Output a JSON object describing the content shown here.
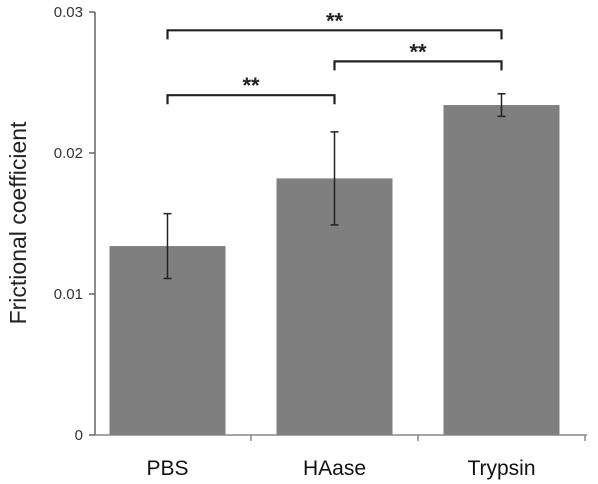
{
  "chart_data": {
    "type": "bar",
    "title": "",
    "xlabel": "",
    "ylabel": "Frictional coefficient",
    "ylim": [
      0,
      0.03
    ],
    "yticks": [
      {
        "value": 0,
        "label": "0"
      },
      {
        "value": 0.01,
        "label": "0.01"
      },
      {
        "value": 0.02,
        "label": "0.02"
      },
      {
        "value": 0.03,
        "label": "0.03"
      }
    ],
    "categories": [
      "PBS",
      "HAase",
      "Trypsin"
    ],
    "values": [
      0.0134,
      0.0182,
      0.0234
    ],
    "error": [
      0.0023,
      0.0033,
      0.0008
    ],
    "bar_color": "#7f7f7f",
    "grid": false,
    "significance": [
      {
        "from": 0,
        "to": 1,
        "label": "**",
        "level": 0.0241
      },
      {
        "from": 1,
        "to": 2,
        "label": "**",
        "level": 0.0265
      },
      {
        "from": 0,
        "to": 2,
        "label": "**",
        "level": 0.0287
      }
    ]
  }
}
